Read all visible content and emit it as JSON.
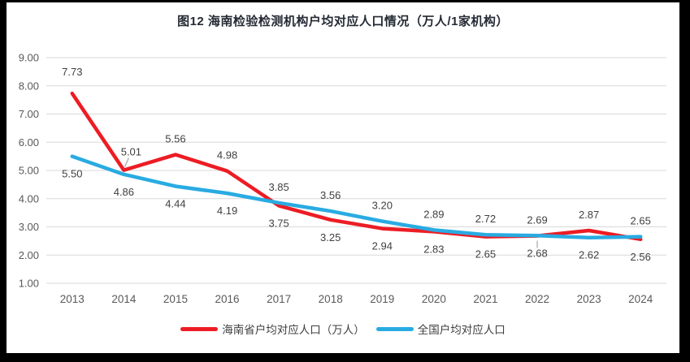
{
  "title": "图12  海南检验检测机构户均对应人口情况（万人/1家机构）",
  "colors": {
    "frame_background": "#000000",
    "panel_background": "#FFFFFF",
    "gridline": "#D9D9D9",
    "axis_text": "#595959",
    "data_label_text": "#404040",
    "title_text": "#242A33",
    "leader_line": "#A6A6A6",
    "hainan_red": "#ED1C24",
    "national_blue": "#29ABE2"
  },
  "legend": [
    {
      "id": "hainan",
      "label": "海南省户均对应人口（万人）",
      "color": "#ED1C24"
    },
    {
      "id": "national",
      "label": "全国户均对应人口",
      "color": "#29ABE2"
    }
  ],
  "chart_data": {
    "type": "line",
    "title": "图12  海南检验检测机构户均对应人口情况（万人/1家机构）",
    "categories": [
      "2013",
      "2014",
      "2015",
      "2016",
      "2017",
      "2018",
      "2019",
      "2020",
      "2021",
      "2022",
      "2023",
      "2024"
    ],
    "yticks": [
      "9.00",
      "8.00",
      "7.00",
      "6.00",
      "5.00",
      "4.00",
      "3.00",
      "2.00",
      "1.00"
    ],
    "ylim": [
      1,
      9
    ],
    "grid": true,
    "legend_position": "bottom",
    "series": [
      {
        "id": "hainan",
        "name": "海南省户均对应人口（万人）",
        "color": "#ED1C24",
        "values": [
          7.73,
          5.01,
          5.56,
          4.98,
          3.75,
          3.25,
          2.94,
          2.83,
          2.65,
          2.68,
          2.87,
          2.56
        ],
        "labels": [
          "7.73",
          "5.01",
          "5.56",
          "4.98",
          "3.75",
          "3.25",
          "2.94",
          "2.83",
          "2.65",
          "2.68",
          "2.87",
          "2.56"
        ],
        "label_positions": [
          "above-far",
          "above-leader",
          "above",
          "above",
          "below",
          "below",
          "below",
          "below",
          "below",
          "below-leader",
          "above",
          "below"
        ]
      },
      {
        "id": "national",
        "name": "全国户均对应人口",
        "color": "#29ABE2",
        "values": [
          5.5,
          4.86,
          4.44,
          4.19,
          3.85,
          3.56,
          3.2,
          2.89,
          2.72,
          2.69,
          2.62,
          2.65
        ],
        "labels": [
          "5.50",
          "4.86",
          "4.44",
          "4.19",
          "3.85",
          "3.56",
          "3.20",
          "2.89",
          "2.72",
          "2.69",
          "2.62",
          "2.65"
        ],
        "label_positions": [
          "below",
          "below",
          "below",
          "below",
          "above",
          "above",
          "above",
          "above",
          "above",
          "above",
          "below",
          "above"
        ]
      }
    ]
  }
}
